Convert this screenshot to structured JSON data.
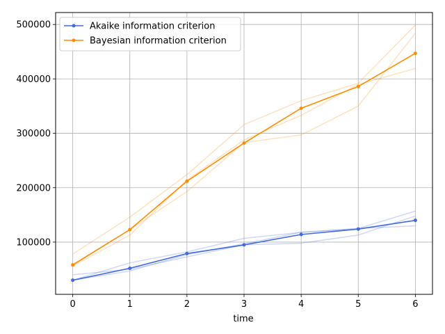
{
  "chart_data": {
    "type": "line",
    "title": "",
    "xlabel": "time",
    "ylabel": "",
    "x": [
      0,
      1,
      2,
      3,
      4,
      5,
      6
    ],
    "xlim": [
      -0.3,
      6.3
    ],
    "ylim": [
      4000,
      522000
    ],
    "x_ticks": [
      "0",
      "1",
      "2",
      "3",
      "4",
      "5",
      "6"
    ],
    "y_ticks": [
      {
        "value": 100000,
        "label": "100000"
      },
      {
        "value": 200000,
        "label": "200000"
      },
      {
        "value": 300000,
        "label": "300000"
      },
      {
        "value": 400000,
        "label": "400000"
      },
      {
        "value": 500000,
        "label": "500000"
      }
    ],
    "grid": true,
    "legend_position": "top-left",
    "series": [
      {
        "name": "Akaike information criterion",
        "color": "#4169e1",
        "values": [
          30000,
          52000,
          79000,
          95000,
          114000,
          124000,
          140000
        ],
        "runs": [
          [
            30000,
            62000,
            82000,
            107000,
            118000,
            125000,
            157000
          ],
          [
            40000,
            50000,
            73000,
            95000,
            98000,
            113000,
            148000
          ],
          [
            30000,
            47000,
            77000,
            97000,
            118000,
            125000,
            130000
          ]
        ]
      },
      {
        "name": "Bayesian information criterion",
        "color": "#ff8c00",
        "values": [
          58000,
          123000,
          212000,
          282000,
          346000,
          386000,
          447000
        ],
        "runs": [
          [
            78000,
            146000,
            224000,
            316000,
            360000,
            392000,
            499000
          ],
          [
            59000,
            123000,
            193000,
            283000,
            297000,
            350000,
            484000
          ],
          [
            56000,
            113000,
            214000,
            288000,
            333000,
            390000,
            419000
          ]
        ]
      }
    ]
  }
}
